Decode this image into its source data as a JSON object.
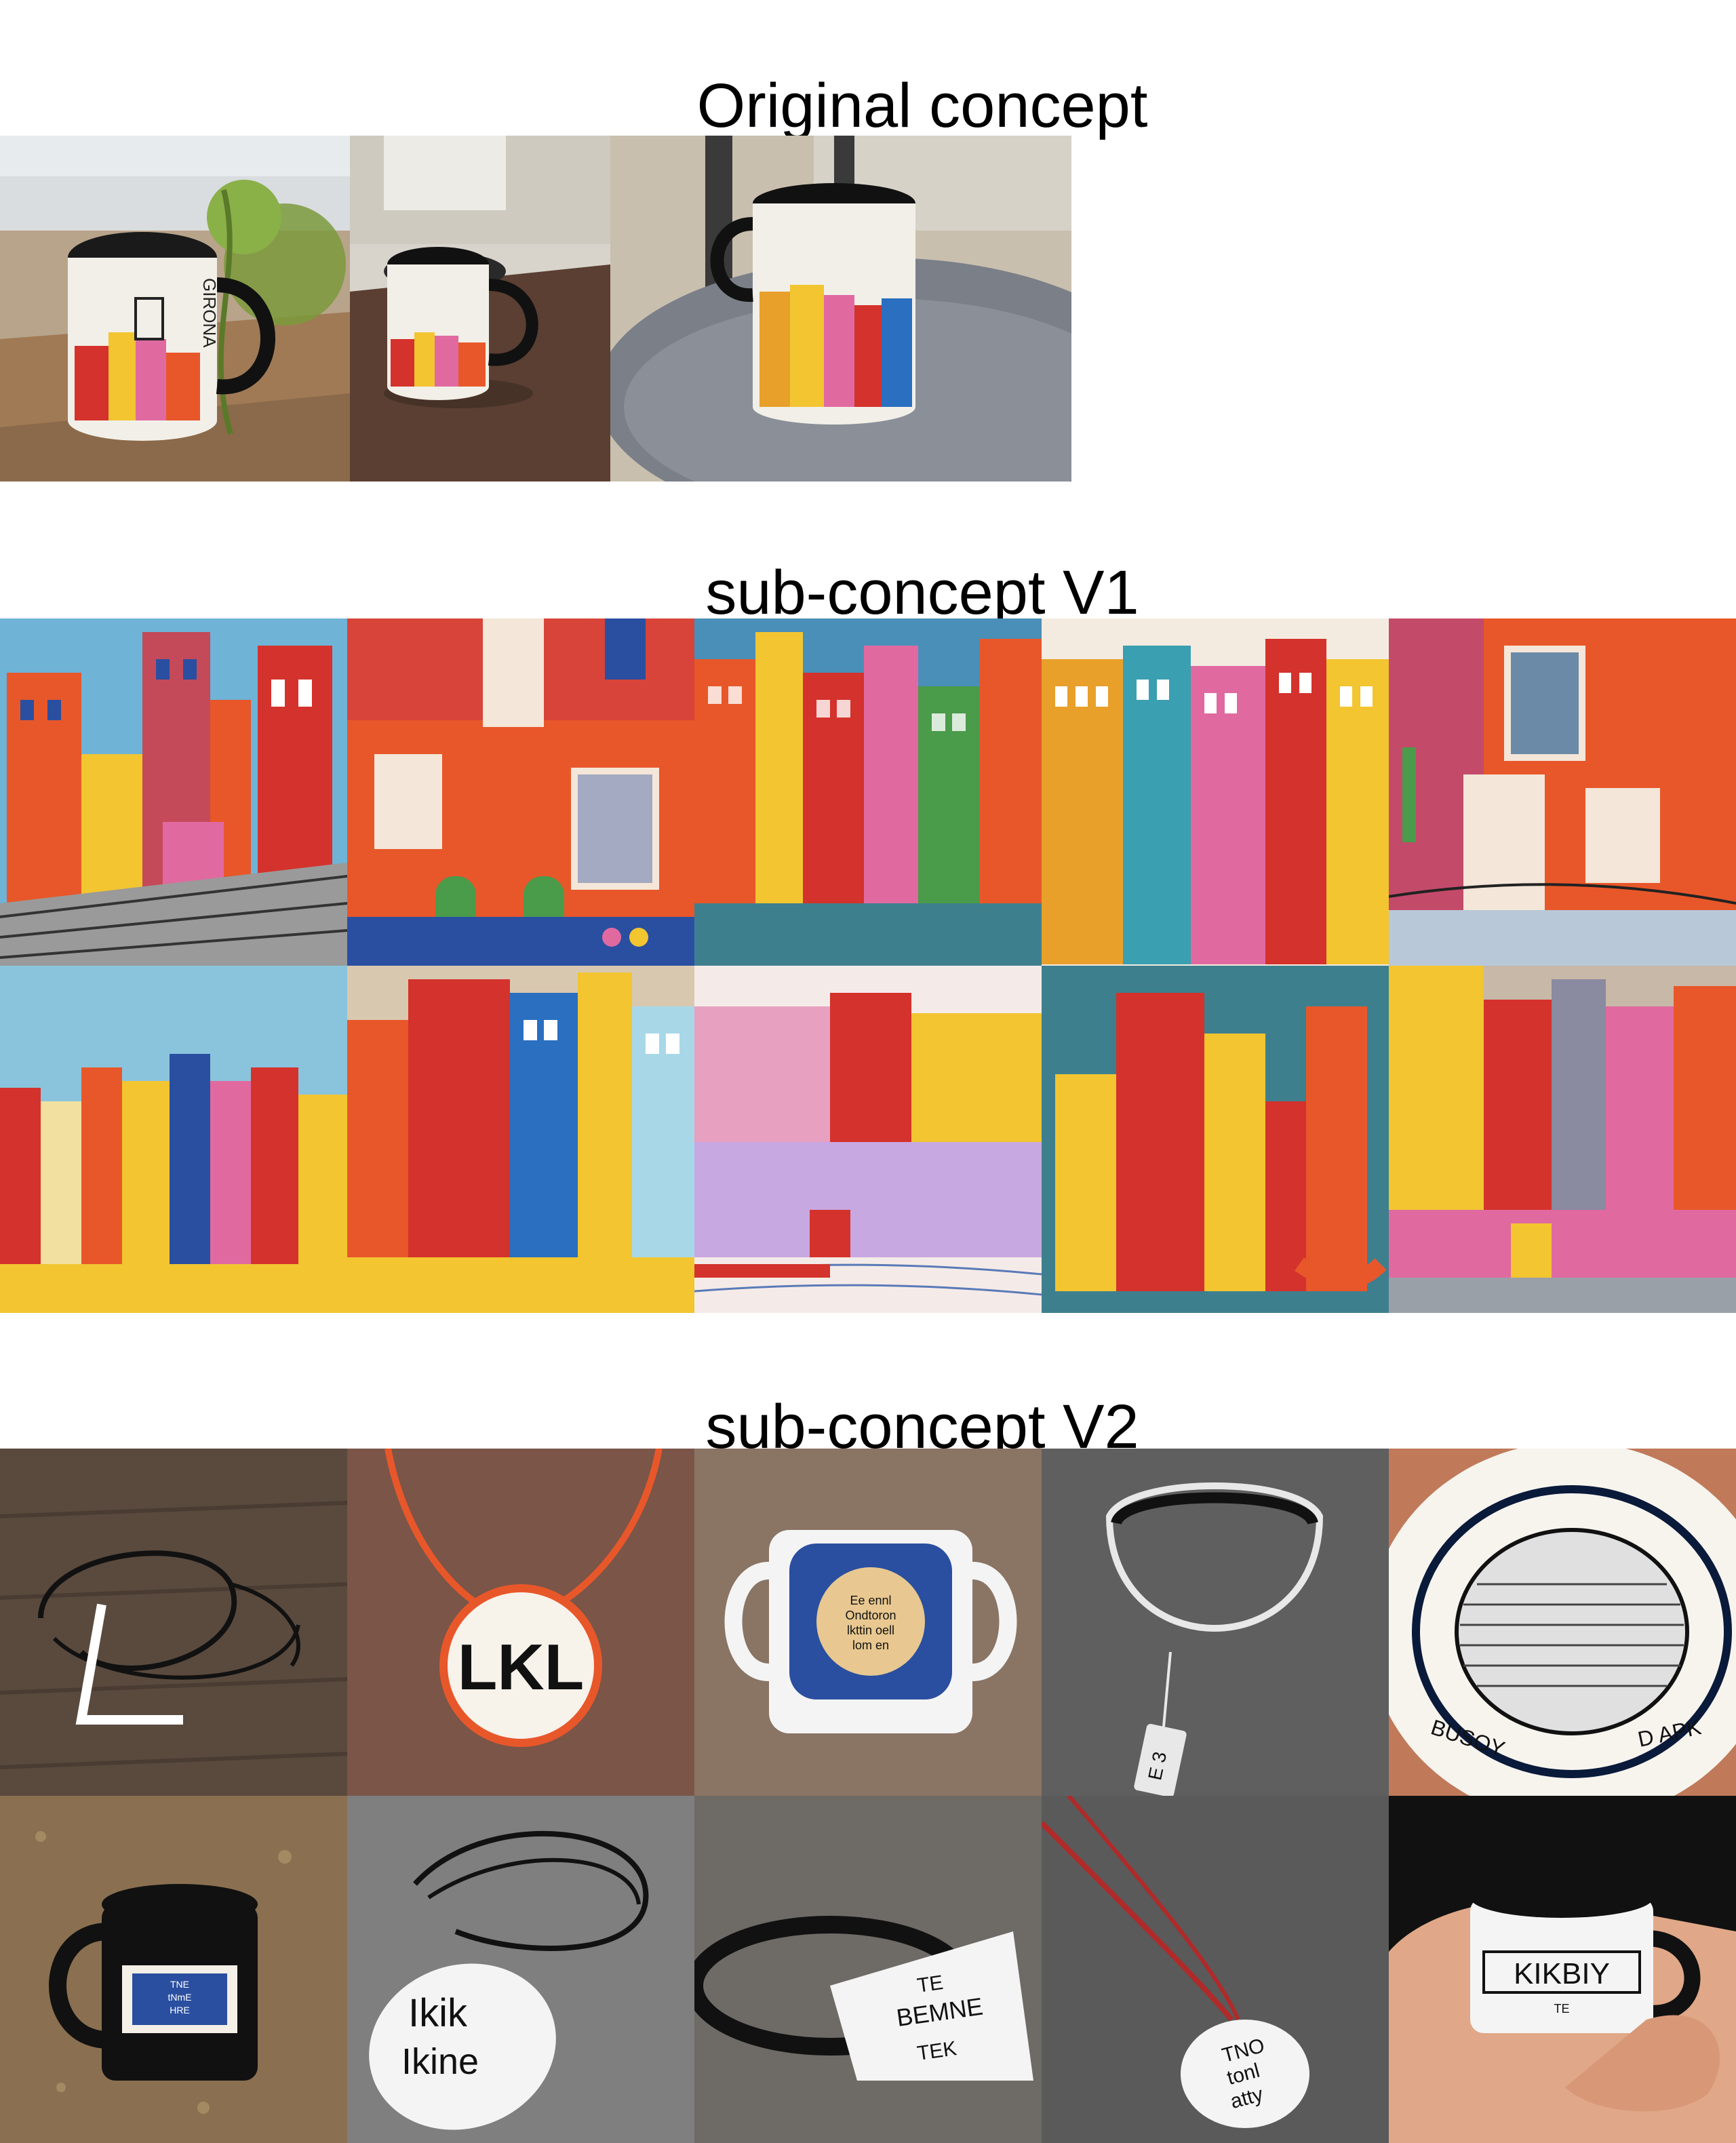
{
  "sections": [
    {
      "title": "Original concept"
    },
    {
      "title": "sub-concept V1"
    },
    {
      "title": "sub-concept V2"
    }
  ],
  "mug_labels": {
    "girona": "GIRONA"
  },
  "v2_labels": {
    "pendant": "LKL",
    "tag_vertical": "E 3",
    "white_tag": [
      "Ikik",
      "Ikine"
    ],
    "mug_small": "KIKBIY",
    "mug_small_sub": "TE",
    "plate_left": "BUSOY",
    "plate_right": "D APK",
    "ribbon": [
      "TE",
      "BEMNE",
      "TEK"
    ],
    "red_tag": [
      "TNO",
      "tonl",
      "atty"
    ],
    "mug_blue": [
      "TNE",
      "tNmE",
      "HRE"
    ],
    "blue_mug_text": [
      "Ee ennl",
      "Ondtoron",
      "lkttin oell",
      "lom en"
    ]
  },
  "colors": {
    "title": "#000000",
    "sky": "#6fb3d6",
    "teal": "#3e7f8e",
    "orange": "#e8572a",
    "red": "#d4322c",
    "yellow": "#f2c531",
    "pink": "#e06aa0",
    "blue": "#2a4fa0",
    "green": "#4a9b4a",
    "wood": "#5a4a3e",
    "asphalt": "#6a6a6a"
  }
}
